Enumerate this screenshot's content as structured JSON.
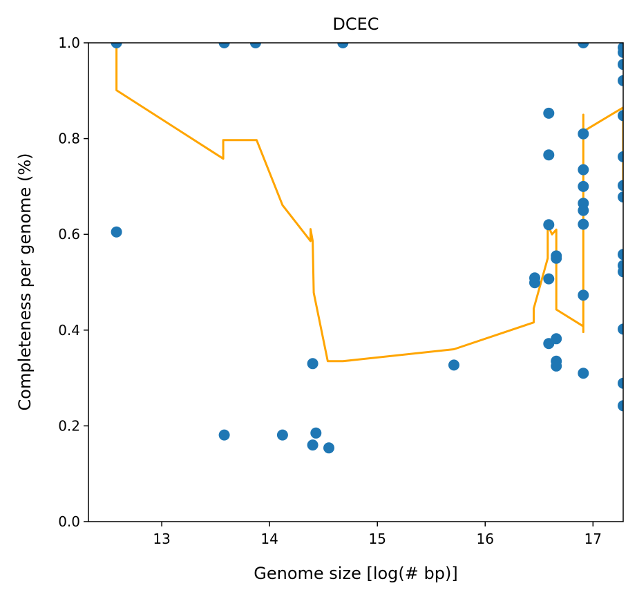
{
  "chart_data": {
    "type": "scatter",
    "title": "DCEC",
    "xlabel": "Genome size [log(# bp)]",
    "ylabel": "Completeness per genome (%)",
    "xlim": [
      12.32,
      17.28
    ],
    "ylim": [
      0.0,
      1.0
    ],
    "x_ticks": [
      13,
      14,
      15,
      16,
      17
    ],
    "y_ticks": [
      0.0,
      0.2,
      0.4,
      0.6,
      0.8,
      1.0
    ],
    "x_tick_labels": [
      "13",
      "14",
      "15",
      "16",
      "17"
    ],
    "y_tick_labels": [
      "0.0",
      "0.2",
      "0.4",
      "0.6",
      "0.8",
      "1.0"
    ],
    "grid": false,
    "colors": {
      "points": "#1f77b4",
      "line": "#ffa500"
    },
    "points": [
      [
        12.58,
        1.0
      ],
      [
        12.58,
        0.605
      ],
      [
        13.58,
        1.0
      ],
      [
        13.58,
        0.181
      ],
      [
        13.87,
        1.0
      ],
      [
        14.12,
        0.181
      ],
      [
        14.4,
        0.33
      ],
      [
        14.4,
        0.16
      ],
      [
        14.43,
        0.185
      ],
      [
        14.55,
        0.154
      ],
      [
        14.68,
        1.0
      ],
      [
        15.71,
        0.327
      ],
      [
        16.46,
        0.509
      ],
      [
        16.46,
        0.499
      ],
      [
        16.59,
        0.853
      ],
      [
        16.59,
        0.766
      ],
      [
        16.59,
        0.62
      ],
      [
        16.59,
        0.507
      ],
      [
        16.59,
        0.372
      ],
      [
        16.66,
        0.555
      ],
      [
        16.66,
        0.55
      ],
      [
        16.66,
        0.382
      ],
      [
        16.66,
        0.335
      ],
      [
        16.66,
        0.325
      ],
      [
        16.91,
        1.0
      ],
      [
        16.91,
        0.81
      ],
      [
        16.91,
        0.735
      ],
      [
        16.91,
        0.7
      ],
      [
        16.91,
        0.665
      ],
      [
        16.91,
        0.65
      ],
      [
        16.91,
        0.621
      ],
      [
        16.91,
        0.473
      ],
      [
        16.91,
        0.31
      ],
      [
        17.28,
        0.99
      ],
      [
        17.28,
        0.98
      ],
      [
        17.28,
        0.955
      ],
      [
        17.28,
        0.921
      ],
      [
        17.28,
        0.848
      ],
      [
        17.28,
        0.762
      ],
      [
        17.28,
        0.702
      ],
      [
        17.28,
        0.678
      ],
      [
        17.28,
        0.558
      ],
      [
        17.28,
        0.535
      ],
      [
        17.28,
        0.522
      ],
      [
        17.28,
        0.402
      ],
      [
        17.28,
        0.289
      ],
      [
        17.28,
        0.242
      ]
    ],
    "line": [
      [
        12.58,
        1.0
      ],
      [
        12.58,
        0.901
      ],
      [
        13.57,
        0.758
      ],
      [
        13.57,
        0.797
      ],
      [
        13.88,
        0.797
      ],
      [
        14.12,
        0.661
      ],
      [
        14.38,
        0.586
      ],
      [
        14.38,
        0.611
      ],
      [
        14.4,
        0.586
      ],
      [
        14.41,
        0.478
      ],
      [
        14.54,
        0.335
      ],
      [
        14.68,
        0.335
      ],
      [
        15.71,
        0.36
      ],
      [
        16.45,
        0.416
      ],
      [
        16.45,
        0.445
      ],
      [
        16.58,
        0.55
      ],
      [
        16.58,
        0.62
      ],
      [
        16.62,
        0.6
      ],
      [
        16.66,
        0.61
      ],
      [
        16.66,
        0.443
      ],
      [
        16.91,
        0.408
      ],
      [
        16.91,
        0.396
      ],
      [
        16.91,
        0.85
      ],
      [
        16.91,
        0.815
      ],
      [
        17.28,
        0.865
      ],
      [
        17.28,
        0.71
      ]
    ]
  }
}
